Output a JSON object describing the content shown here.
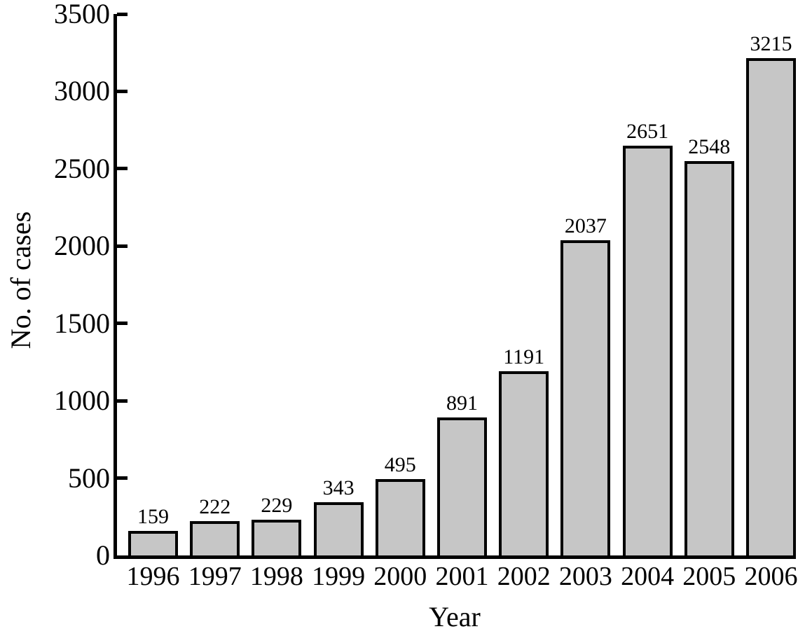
{
  "chart_data": {
    "type": "bar",
    "categories": [
      "1996",
      "1997",
      "1998",
      "1999",
      "2000",
      "2001",
      "2002",
      "2003",
      "2004",
      "2005",
      "2006"
    ],
    "values": [
      159,
      222,
      229,
      343,
      495,
      891,
      1191,
      2037,
      2651,
      2548,
      3215
    ],
    "value_labels": [
      "159",
      "222",
      "229",
      "343",
      "495",
      "891",
      "1191",
      "2037",
      "2651",
      "2548",
      "3215"
    ],
    "title": "",
    "xlabel": "Year",
    "ylabel": "No. of cases",
    "ylim": [
      0,
      3500
    ],
    "yticks": [
      0,
      500,
      1000,
      1500,
      2000,
      2500,
      3000,
      3500
    ],
    "ytick_labels": [
      "0",
      "500",
      "1000",
      "1500",
      "2000",
      "2500",
      "3000",
      "3500"
    ],
    "grid": false,
    "legend": false,
    "bar_fill_color": "#c6c6c6",
    "bar_border_color": "#000000",
    "axis_color": "#000000",
    "text_color": "#000000"
  }
}
